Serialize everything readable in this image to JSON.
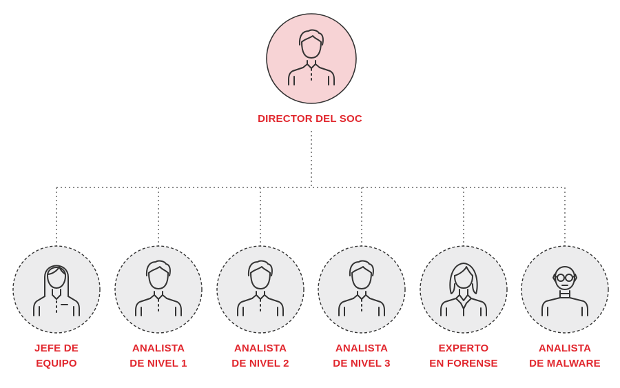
{
  "colors": {
    "accent": "#e1262d",
    "top_fill": "#f7d3d5",
    "node_fill": "#ececed",
    "stroke": "#333333",
    "connector": "#8c8c8c"
  },
  "director": {
    "label": "DIRECTOR DEL SOC",
    "icon": "man-icon"
  },
  "team": [
    {
      "line1": "JEFE DE",
      "line2": "EQUIPO",
      "icon": "woman-long-hair-icon"
    },
    {
      "line1": "ANALISTA",
      "line2": "DE NIVEL 1",
      "icon": "man-icon"
    },
    {
      "line1": "ANALISTA",
      "line2": "DE NIVEL 2",
      "icon": "man-icon"
    },
    {
      "line1": "ANALISTA",
      "line2": "DE NIVEL 3",
      "icon": "man-icon"
    },
    {
      "line1": "EXPERTO",
      "line2": "EN FORENSE",
      "icon": "woman-blazer-icon"
    },
    {
      "line1": "ANALISTA",
      "line2": "DE MALWARE",
      "icon": "bald-man-glasses-icon"
    }
  ]
}
